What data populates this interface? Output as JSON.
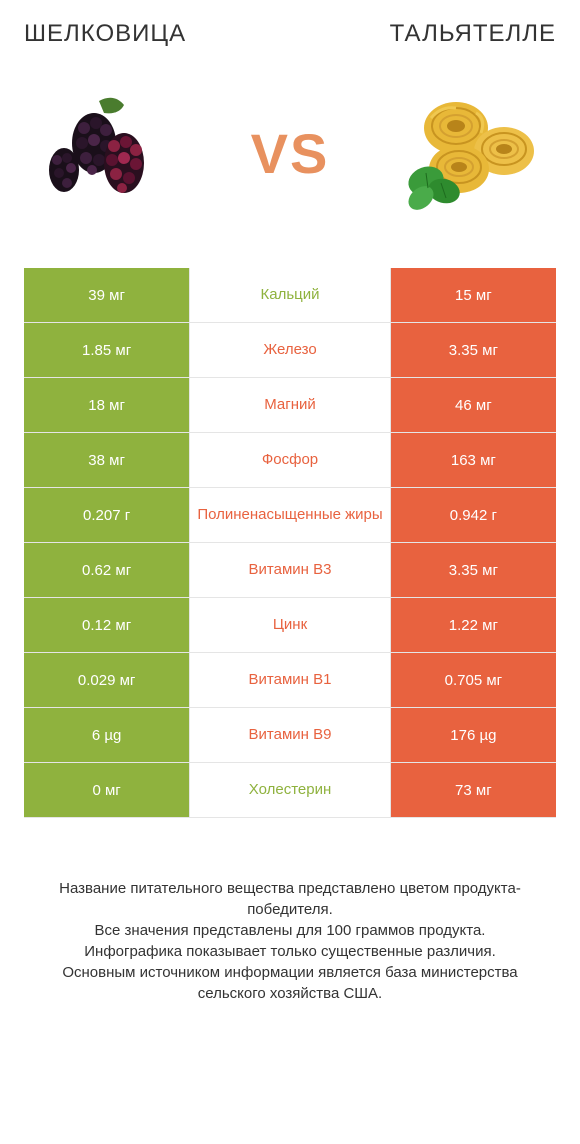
{
  "header": {
    "left_title": "ШЕЛКОВИЦА",
    "right_title": "ТАЛЬЯТЕЛЛЕ"
  },
  "vs_label": "VS",
  "colors": {
    "green": "#8fb23e",
    "orange": "#e8623f",
    "row_border": "#e5e5e5",
    "text": "#333333",
    "white": "#ffffff"
  },
  "comparison": {
    "type": "table",
    "columns": [
      "left_value",
      "nutrient",
      "right_value"
    ],
    "rows": [
      {
        "left": "39 мг",
        "name": "Кальций",
        "right": "15 мг",
        "winner": "left"
      },
      {
        "left": "1.85 мг",
        "name": "Железо",
        "right": "3.35 мг",
        "winner": "right"
      },
      {
        "left": "18 мг",
        "name": "Магний",
        "right": "46 мг",
        "winner": "right"
      },
      {
        "left": "38 мг",
        "name": "Фосфор",
        "right": "163 мг",
        "winner": "right"
      },
      {
        "left": "0.207 г",
        "name": "Полиненасыщенные жиры",
        "right": "0.942 г",
        "winner": "right"
      },
      {
        "left": "0.62 мг",
        "name": "Витамин B3",
        "right": "3.35 мг",
        "winner": "right"
      },
      {
        "left": "0.12 мг",
        "name": "Цинк",
        "right": "1.22 мг",
        "winner": "right"
      },
      {
        "left": "0.029 мг",
        "name": "Витамин B1",
        "right": "0.705 мг",
        "winner": "right"
      },
      {
        "left": "6 µg",
        "name": "Витамин B9",
        "right": "176 µg",
        "winner": "right"
      },
      {
        "left": "0 мг",
        "name": "Холестерин",
        "right": "73 мг",
        "winner": "left"
      }
    ]
  },
  "footer": {
    "line1": "Название питательного вещества представлено цветом продукта-победителя.",
    "line2": "Все значения представлены для 100 граммов продукта.",
    "line3": "Инфографика показывает только существенные различия.",
    "line4": "Основным источником информации является база министерства сельского хозяйства США."
  }
}
